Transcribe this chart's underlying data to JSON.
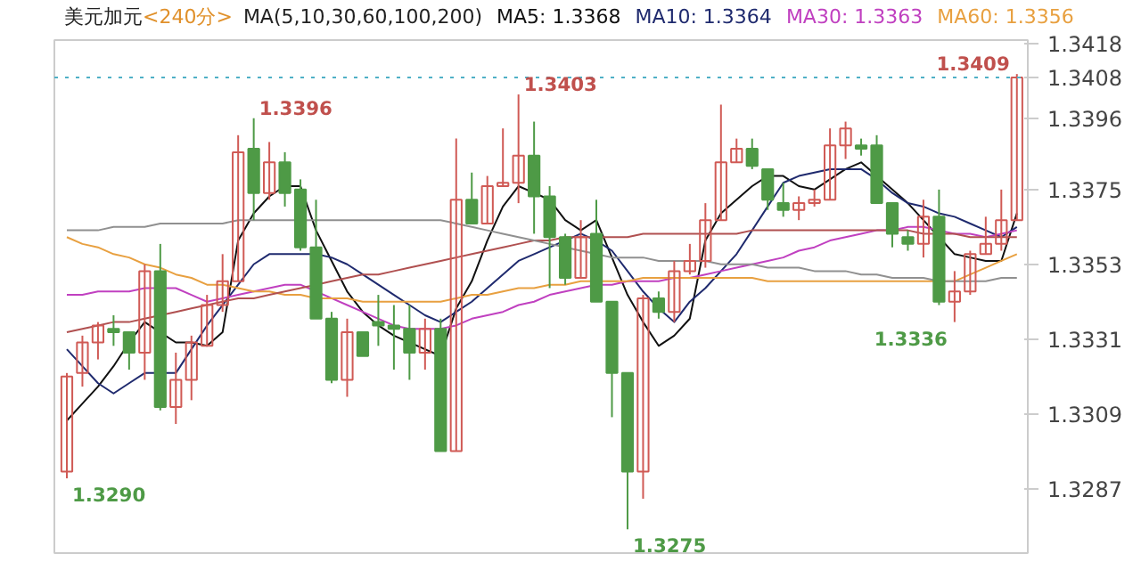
{
  "chart_data": {
    "type": "candlestick",
    "title": "美元加元",
    "subtitle": "<240分>",
    "annotations": [
      "MA(5,10,30,60,100,200)"
    ],
    "value_labels": [
      "1.3290",
      null,
      null,
      null,
      null,
      null,
      null,
      null,
      null,
      null,
      null,
      null,
      "1.3396",
      null,
      null,
      null,
      null,
      null,
      null,
      null,
      null,
      null,
      null,
      null,
      null,
      null,
      null,
      null,
      null,
      "1.3403",
      null,
      null,
      null,
      null,
      null,
      null,
      "1.3275",
      null,
      null,
      null,
      null,
      null,
      null,
      null,
      null,
      null,
      null,
      null,
      null,
      null,
      null,
      null,
      null,
      null,
      null,
      null,
      null,
      "1.3336",
      null,
      null,
      null,
      "1.3409"
    ],
    "categories": [
      null,
      null,
      null,
      null,
      null,
      null,
      null,
      null,
      null,
      null,
      null,
      null,
      null,
      null,
      null,
      null,
      null,
      null,
      null,
      null,
      null,
      null,
      null,
      null,
      null,
      null,
      null,
      null,
      null,
      null,
      null,
      null,
      null,
      null,
      null,
      null,
      null,
      null,
      null,
      null,
      null,
      null,
      null,
      null,
      null,
      null,
      null,
      null,
      null,
      null,
      null,
      null,
      null,
      null,
      null,
      null,
      null,
      null,
      null,
      null,
      null,
      null
    ],
    "ohlc": [
      [
        1.3292,
        1.3321,
        1.329,
        1.332
      ],
      [
        1.3321,
        1.3332,
        1.3317,
        1.333
      ],
      [
        1.333,
        1.3336,
        1.3325,
        1.3335
      ],
      [
        1.3334,
        1.3338,
        1.3329,
        1.3333
      ],
      [
        1.3333,
        1.3333,
        1.3322,
        1.3327
      ],
      [
        1.3327,
        1.3353,
        1.3319,
        1.3351
      ],
      [
        1.3351,
        1.3359,
        1.331,
        1.3311
      ],
      [
        1.3311,
        1.3327,
        1.3306,
        1.3319
      ],
      [
        1.3319,
        1.3332,
        1.3313,
        1.333
      ],
      [
        1.3329,
        1.3344,
        1.3329,
        1.3341
      ],
      [
        1.3341,
        1.3356,
        1.3339,
        1.3348
      ],
      [
        1.3348,
        1.3391,
        1.3348,
        1.3386
      ],
      [
        1.3387,
        1.3396,
        1.3366,
        1.3374
      ],
      [
        1.3374,
        1.3389,
        1.3372,
        1.3383
      ],
      [
        1.3383,
        1.3386,
        1.337,
        1.3374
      ],
      [
        1.3375,
        1.3378,
        1.3357,
        1.3358
      ],
      [
        1.3358,
        1.3372,
        1.3337,
        1.3337
      ],
      [
        1.3337,
        1.3339,
        1.3318,
        1.3319
      ],
      [
        1.3319,
        1.3337,
        1.3314,
        1.3333
      ],
      [
        1.3333,
        1.3333,
        1.3326,
        1.3326
      ],
      [
        1.3336,
        1.3344,
        1.3329,
        1.3335
      ],
      [
        1.3335,
        1.3341,
        1.3322,
        1.3334
      ],
      [
        1.3334,
        1.3341,
        1.3319,
        1.3327
      ],
      [
        1.3327,
        1.3337,
        1.3322,
        1.3334
      ],
      [
        1.3334,
        1.3337,
        1.3298,
        1.3298
      ],
      [
        1.3298,
        1.339,
        1.3298,
        1.3372
      ],
      [
        1.3372,
        1.338,
        1.3365,
        1.3365
      ],
      [
        1.3365,
        1.3379,
        1.3365,
        1.3376
      ],
      [
        1.3376,
        1.3393,
        1.3376,
        1.3377
      ],
      [
        1.3377,
        1.3403,
        1.3371,
        1.3385
      ],
      [
        1.3385,
        1.3395,
        1.3362,
        1.3373
      ],
      [
        1.3373,
        1.3376,
        1.3346,
        1.3361
      ],
      [
        1.3361,
        1.3362,
        1.3347,
        1.3349
      ],
      [
        1.3349,
        1.3366,
        1.3349,
        1.3361
      ],
      [
        1.3362,
        1.3372,
        1.3342,
        1.3342
      ],
      [
        1.3342,
        1.3342,
        1.3308,
        1.3321
      ],
      [
        1.3321,
        1.3321,
        1.3275,
        1.3292
      ],
      [
        1.3292,
        1.3344,
        1.3284,
        1.3343
      ],
      [
        1.3343,
        1.3345,
        1.3337,
        1.3339
      ],
      [
        1.3339,
        1.3354,
        1.3336,
        1.3351
      ],
      [
        1.3351,
        1.3359,
        1.335,
        1.3354
      ],
      [
        1.3354,
        1.3371,
        1.3352,
        1.3366
      ],
      [
        1.3366,
        1.34,
        1.3366,
        1.3383
      ],
      [
        1.3383,
        1.339,
        1.3383,
        1.3387
      ],
      [
        1.3387,
        1.339,
        1.3381,
        1.3382
      ],
      [
        1.3381,
        1.3381,
        1.3369,
        1.3372
      ],
      [
        1.3371,
        1.3377,
        1.3367,
        1.3369
      ],
      [
        1.3369,
        1.3373,
        1.3366,
        1.3371
      ],
      [
        1.3371,
        1.3375,
        1.337,
        1.3372
      ],
      [
        1.3372,
        1.3393,
        1.3372,
        1.3388
      ],
      [
        1.3388,
        1.3395,
        1.3384,
        1.3393
      ],
      [
        1.3388,
        1.339,
        1.3385,
        1.3387
      ],
      [
        1.3388,
        1.3391,
        1.3371,
        1.3371
      ],
      [
        1.3371,
        1.3371,
        1.3358,
        1.3362
      ],
      [
        1.3361,
        1.3363,
        1.3357,
        1.3359
      ],
      [
        1.3359,
        1.3372,
        1.3355,
        1.3367
      ],
      [
        1.3367,
        1.3375,
        1.3341,
        1.3342
      ],
      [
        1.3342,
        1.3351,
        1.3336,
        1.3345
      ],
      [
        1.3345,
        1.3357,
        1.3344,
        1.3356
      ],
      [
        1.3356,
        1.3367,
        1.3356,
        1.3359
      ],
      [
        1.3359,
        1.3375,
        1.3357,
        1.3366
      ],
      [
        1.3366,
        1.3409,
        1.3366,
        1.3408
      ]
    ],
    "colors": [
      "#d05a55",
      "#d05a55",
      "#d05a55",
      "#4e9a46",
      "#4e9a46",
      "#d05a55",
      "#4e9a46",
      "#d05a55",
      "#d05a55",
      "#d05a55",
      "#d05a55",
      "#d05a55",
      "#4e9a46",
      "#d05a55",
      "#4e9a46",
      "#4e9a46",
      "#4e9a46",
      "#4e9a46",
      "#d05a55",
      "#4e9a46",
      "#4e9a46",
      "#4e9a46",
      "#4e9a46",
      "#d05a55",
      "#4e9a46",
      "#d05a55",
      "#4e9a46",
      "#d05a55",
      "#d05a55",
      "#d05a55",
      "#4e9a46",
      "#4e9a46",
      "#4e9a46",
      "#d05a55",
      "#4e9a46",
      "#4e9a46",
      "#4e9a46",
      "#d05a55",
      "#4e9a46",
      "#d05a55",
      "#d05a55",
      "#d05a55",
      "#d05a55",
      "#d05a55",
      "#4e9a46",
      "#4e9a46",
      "#4e9a46",
      "#d05a55",
      "#d05a55",
      "#d05a55",
      "#d05a55",
      "#4e9a46",
      "#4e9a46",
      "#4e9a46",
      "#4e9a46",
      "#d05a55",
      "#4e9a46",
      "#d05a55",
      "#d05a55",
      "#d05a55",
      "#d05a55",
      "#d05a55"
    ],
    "series": [
      {
        "type": "line",
        "name": "MA5: 1.3368",
        "color": "#111111",
        "values": [
          1.3307,
          1.3312,
          1.3317,
          1.3323,
          1.333,
          1.3336,
          1.3333,
          1.333,
          1.333,
          1.3329,
          1.3333,
          1.336,
          1.3368,
          1.3373,
          1.3376,
          1.3376,
          1.3363,
          1.3354,
          1.3345,
          1.3339,
          1.3335,
          1.3332,
          1.333,
          1.3328,
          1.3326,
          1.334,
          1.3348,
          1.336,
          1.337,
          1.3376,
          1.3374,
          1.3372,
          1.3366,
          1.3363,
          1.3366,
          1.3355,
          1.3344,
          1.3336,
          1.3329,
          1.3332,
          1.3337,
          1.336,
          1.3368,
          1.3372,
          1.3376,
          1.3379,
          1.3379,
          1.3376,
          1.3375,
          1.3378,
          1.3381,
          1.3383,
          1.3379,
          1.3375,
          1.3371,
          1.3366,
          1.3361,
          1.3356,
          1.3355,
          1.3354,
          1.3354,
          1.3368
        ]
      },
      {
        "type": "line",
        "name": "MA10: 1.3364",
        "color": "#1f2a6e",
        "values": [
          1.3328,
          1.3323,
          1.3318,
          1.3315,
          1.3318,
          1.3321,
          1.3321,
          1.3321,
          1.3328,
          1.3335,
          1.3341,
          1.3347,
          1.3353,
          1.3356,
          1.3356,
          1.3356,
          1.3356,
          1.3355,
          1.3353,
          1.335,
          1.3347,
          1.3344,
          1.3341,
          1.3338,
          1.3336,
          1.3339,
          1.3342,
          1.3346,
          1.335,
          1.3354,
          1.3356,
          1.3358,
          1.336,
          1.3362,
          1.336,
          1.3357,
          1.3351,
          1.3345,
          1.334,
          1.3336,
          1.3342,
          1.3346,
          1.3351,
          1.3356,
          1.3363,
          1.337,
          1.3377,
          1.3379,
          1.338,
          1.3381,
          1.3381,
          1.3381,
          1.3378,
          1.3374,
          1.3371,
          1.337,
          1.3368,
          1.3367,
          1.3365,
          1.3363,
          1.3361,
          1.3364
        ]
      },
      {
        "type": "line",
        "name": "MA30: 1.3363",
        "color": "#c040c0",
        "values": [
          1.3344,
          1.3344,
          1.3345,
          1.3345,
          1.3345,
          1.3346,
          1.3346,
          1.3346,
          1.3344,
          1.3342,
          1.3343,
          1.3344,
          1.3345,
          1.3346,
          1.3347,
          1.3347,
          1.3345,
          1.3343,
          1.3341,
          1.3339,
          1.3337,
          1.3335,
          1.3334,
          1.3334,
          1.3334,
          1.3335,
          1.3337,
          1.3338,
          1.3339,
          1.3341,
          1.3342,
          1.3344,
          1.3345,
          1.3346,
          1.3347,
          1.3347,
          1.3348,
          1.3348,
          1.3348,
          1.3349,
          1.3349,
          1.335,
          1.3351,
          1.3352,
          1.3353,
          1.3354,
          1.3355,
          1.3357,
          1.3358,
          1.336,
          1.3361,
          1.3362,
          1.3363,
          1.3363,
          1.3364,
          1.3364,
          1.3363,
          1.3362,
          1.3362,
          1.3361,
          1.3362,
          1.3363
        ]
      },
      {
        "type": "line",
        "name": "MA60: 1.3356",
        "color": "#e8a040",
        "values": [
          1.3361,
          1.3359,
          1.3358,
          1.3356,
          1.3355,
          1.3353,
          1.3352,
          1.335,
          1.3349,
          1.3347,
          1.3347,
          1.3346,
          1.3345,
          1.3345,
          1.3344,
          1.3344,
          1.3343,
          1.3343,
          1.3343,
          1.3342,
          1.3342,
          1.3342,
          1.3342,
          1.3342,
          1.3342,
          1.3343,
          1.3344,
          1.3344,
          1.3345,
          1.3346,
          1.3346,
          1.3347,
          1.3347,
          1.3348,
          1.3348,
          1.3348,
          1.3348,
          1.3349,
          1.3349,
          1.3349,
          1.3349,
          1.3349,
          1.3349,
          1.3349,
          1.3349,
          1.3348,
          1.3348,
          1.3348,
          1.3348,
          1.3348,
          1.3348,
          1.3348,
          1.3348,
          1.3348,
          1.3348,
          1.3348,
          1.3348,
          1.3348,
          1.335,
          1.3352,
          1.3354,
          1.3356
        ]
      },
      {
        "type": "line",
        "color": "#b05050",
        "values": [
          1.3333,
          1.3334,
          1.3335,
          1.3336,
          1.3336,
          1.3337,
          1.3338,
          1.3339,
          1.334,
          1.3341,
          1.3342,
          1.3343,
          1.3343,
          1.3344,
          1.3345,
          1.3346,
          1.3347,
          1.3348,
          1.3349,
          1.335,
          1.335,
          1.3351,
          1.3352,
          1.3353,
          1.3354,
          1.3355,
          1.3356,
          1.3357,
          1.3358,
          1.3359,
          1.336,
          1.336,
          1.3361,
          1.3361,
          1.3361,
          1.3361,
          1.3361,
          1.3362,
          1.3362,
          1.3362,
          1.3362,
          1.3362,
          1.3362,
          1.3362,
          1.3363,
          1.3363,
          1.3363,
          1.3363,
          1.3363,
          1.3363,
          1.3363,
          1.3363,
          1.3363,
          1.3363,
          1.3363,
          1.3362,
          1.3362,
          1.3362,
          1.3361,
          1.3361,
          1.3361,
          1.3361
        ]
      },
      {
        "type": "line",
        "color": "#909090",
        "values": [
          1.3363,
          1.3363,
          1.3363,
          1.3364,
          1.3364,
          1.3364,
          1.3365,
          1.3365,
          1.3365,
          1.3365,
          1.3365,
          1.3366,
          1.3366,
          1.3366,
          1.3366,
          1.3366,
          1.3366,
          1.3366,
          1.3366,
          1.3366,
          1.3366,
          1.3366,
          1.3366,
          1.3366,
          1.3366,
          1.3365,
          1.3364,
          1.3363,
          1.3362,
          1.3361,
          1.336,
          1.3359,
          1.3358,
          1.3357,
          1.3356,
          1.3355,
          1.3355,
          1.3355,
          1.3354,
          1.3354,
          1.3354,
          1.3354,
          1.3353,
          1.3353,
          1.3353,
          1.3352,
          1.3352,
          1.3352,
          1.3351,
          1.3351,
          1.3351,
          1.335,
          1.335,
          1.3349,
          1.3349,
          1.3349,
          1.3348,
          1.3348,
          1.3348,
          1.3348,
          1.3349,
          1.3349
        ]
      }
    ],
    "ylim": [
      1.3268,
      1.3419
    ],
    "yticks": [
      1.3418,
      1.3396,
      1.3375,
      1.3353,
      1.3331,
      1.3309,
      1.3287
    ],
    "ref_lines": [
      {
        "axis": "y",
        "value": 1.3408,
        "label": "1.3408",
        "color": "#4fb0c6",
        "line_style": "dotted"
      }
    ],
    "legend": "top",
    "tick_labels": "y"
  }
}
